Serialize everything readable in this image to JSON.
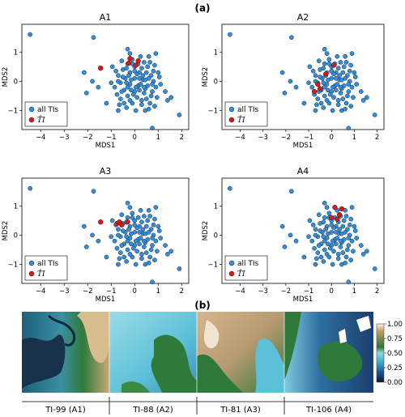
{
  "figure_labels": {
    "part_a": "(a)",
    "part_b": "(b)"
  },
  "legend": {
    "all_label": "all TIs",
    "selected_label": "T̂I"
  },
  "colors": {
    "all": "#2e8fe0",
    "selected": "#e01515",
    "edge": "#1a1a1a"
  },
  "chart_data": [
    {
      "type": "scatter",
      "title": "A1",
      "xlabel": "MDS1",
      "ylabel": "MDS2",
      "xlim": [
        -4.8,
        2.3
      ],
      "ylim": [
        -1.65,
        1.95
      ],
      "xticks": [
        -4,
        -3,
        -2,
        -1,
        0,
        1,
        2
      ],
      "yticks": [
        -1,
        0,
        1
      ],
      "legend_position": "lower-left",
      "selected": [
        [
          -1.45,
          0.45
        ],
        [
          -0.2,
          0.78
        ],
        [
          -0.25,
          0.62
        ],
        [
          0.05,
          0.55
        ],
        [
          0.15,
          0.7
        ]
      ]
    },
    {
      "type": "scatter",
      "title": "A2",
      "xlabel": "MDS1",
      "ylabel": "MDS2",
      "xlim": [
        -4.8,
        2.3
      ],
      "ylim": [
        -1.65,
        1.95
      ],
      "xticks": [
        -4,
        -3,
        -2,
        -1,
        0,
        1,
        2
      ],
      "yticks": [
        -1,
        0,
        1
      ],
      "legend_position": "lower-left",
      "selected": [
        [
          -0.6,
          -0.1
        ],
        [
          -0.5,
          -0.25
        ],
        [
          -0.75,
          -0.35
        ],
        [
          -0.25,
          0.25
        ],
        [
          0.1,
          0.55
        ]
      ]
    },
    {
      "type": "scatter",
      "title": "A3",
      "xlabel": "MDS1",
      "ylabel": "MDS2",
      "xlim": [
        -4.8,
        2.3
      ],
      "ylim": [
        -1.65,
        1.95
      ],
      "xticks": [
        -4,
        -3,
        -2,
        -1,
        0,
        1,
        2
      ],
      "yticks": [
        -1,
        0,
        1
      ],
      "legend_position": "lower-left",
      "selected": [
        [
          -1.45,
          0.45
        ],
        [
          -0.75,
          0.4
        ],
        [
          -0.65,
          0.45
        ],
        [
          -0.55,
          0.35
        ],
        [
          -0.3,
          0.45
        ]
      ]
    },
    {
      "type": "scatter",
      "title": "A4",
      "xlabel": "MDS1",
      "ylabel": "MDS2",
      "xlim": [
        -4.8,
        2.3
      ],
      "ylim": [
        -1.65,
        1.95
      ],
      "xticks": [
        -4,
        -3,
        -2,
        -1,
        0,
        1,
        2
      ],
      "yticks": [
        -1,
        0,
        1
      ],
      "legend_position": "lower-left",
      "selected": [
        [
          0.15,
          0.95
        ],
        [
          0.45,
          0.9
        ],
        [
          0.25,
          0.55
        ],
        [
          0.0,
          0.6
        ],
        [
          0.35,
          0.7
        ]
      ]
    }
  ],
  "all_tis": [
    [
      -4.45,
      1.6
    ],
    [
      -1.75,
      1.5
    ],
    [
      -2.15,
      0.3
    ],
    [
      -1.8,
      0.0
    ],
    [
      -1.55,
      -0.2
    ],
    [
      -2.05,
      -0.4
    ],
    [
      -1.2,
      -0.75
    ],
    [
      -0.7,
      -1.0
    ],
    [
      0.75,
      -1.6
    ],
    [
      1.9,
      -1.15
    ],
    [
      1.4,
      -0.65
    ],
    [
      1.55,
      -0.55
    ],
    [
      1.3,
      -0.35
    ],
    [
      0.9,
      0.95
    ],
    [
      -0.2,
      0.95
    ],
    [
      -0.3,
      1.1
    ],
    [
      0.6,
      0.85
    ],
    [
      -0.3,
      0.6
    ],
    [
      0.0,
      0.5
    ],
    [
      0.3,
      0.45
    ],
    [
      -0.5,
      0.4
    ],
    [
      0.2,
      0.3
    ],
    [
      -0.2,
      0.3
    ],
    [
      0.5,
      0.3
    ],
    [
      0.7,
      0.2
    ],
    [
      -0.7,
      0.2
    ],
    [
      -0.4,
      0.1
    ],
    [
      0.0,
      0.1
    ],
    [
      0.35,
      0.05
    ],
    [
      0.8,
      0.0
    ],
    [
      -0.6,
      -0.05
    ],
    [
      -0.2,
      -0.1
    ],
    [
      0.15,
      -0.15
    ],
    [
      0.55,
      -0.15
    ],
    [
      -0.85,
      -0.2
    ],
    [
      -0.45,
      -0.3
    ],
    [
      0.0,
      -0.35
    ],
    [
      0.4,
      -0.4
    ],
    [
      0.75,
      -0.35
    ],
    [
      -0.3,
      -0.5
    ],
    [
      0.1,
      -0.55
    ],
    [
      0.5,
      -0.6
    ],
    [
      -0.6,
      -0.6
    ],
    [
      -0.1,
      -0.75
    ],
    [
      0.3,
      -0.8
    ],
    [
      0.65,
      -0.75
    ],
    [
      -0.35,
      -0.9
    ],
    [
      0.05,
      -1.0
    ],
    [
      0.45,
      -1.0
    ],
    [
      0.95,
      -0.55
    ],
    [
      1.0,
      0.3
    ],
    [
      -0.95,
      0.5
    ],
    [
      -0.1,
      0.75
    ],
    [
      0.4,
      0.65
    ],
    [
      -0.55,
      0.7
    ],
    [
      0.85,
      0.55
    ],
    [
      0.25,
      0.85
    ],
    [
      -0.75,
      -0.45
    ],
    [
      0.2,
      -0.3
    ],
    [
      -0.15,
      0.05
    ],
    [
      0.6,
      0.1
    ],
    [
      -0.3,
      -0.2
    ],
    [
      0.1,
      0.25
    ],
    [
      0.45,
      -0.25
    ],
    [
      -0.5,
      0.15
    ],
    [
      0.7,
      -0.5
    ],
    [
      -0.2,
      -0.65
    ],
    [
      0.25,
      -0.1
    ],
    [
      0.9,
      -0.2
    ],
    [
      -0.65,
      -0.8
    ],
    [
      0.15,
      0.6
    ],
    [
      -0.35,
      0.45
    ],
    [
      0.55,
      0.5
    ],
    [
      1.1,
      -0.1
    ],
    [
      -0.05,
      -0.45
    ],
    [
      0.35,
      0.2
    ],
    [
      -0.8,
      0.35
    ],
    [
      0.6,
      -0.95
    ],
    [
      -0.45,
      -0.75
    ],
    [
      0.8,
      0.35
    ],
    [
      -0.25,
      0.2
    ],
    [
      0.05,
      -0.2
    ],
    [
      0.45,
      0.05
    ],
    [
      -0.7,
      0.0
    ],
    [
      0.3,
      -0.65
    ],
    [
      0.75,
      -0.1
    ],
    [
      -0.15,
      -0.3
    ],
    [
      0.2,
      0.1
    ],
    [
      -0.55,
      -0.35
    ],
    [
      0.65,
      0.65
    ],
    [
      1.05,
      0.15
    ],
    [
      -1.0,
      -0.05
    ],
    [
      0.0,
      0.35
    ],
    [
      0.4,
      -0.2
    ],
    [
      -0.35,
      -0.05
    ],
    [
      0.85,
      -0.85
    ],
    [
      -0.1,
      0.6
    ]
  ],
  "maps": {
    "labels": [
      "TI-99 (A1)",
      "TI-88 (A2)",
      "TI-81 (A3)",
      "TI-106 (A4)"
    ],
    "colorbar_ticks": [
      "1.00",
      "0.75",
      "0.50",
      "0.25",
      "0.00"
    ]
  }
}
